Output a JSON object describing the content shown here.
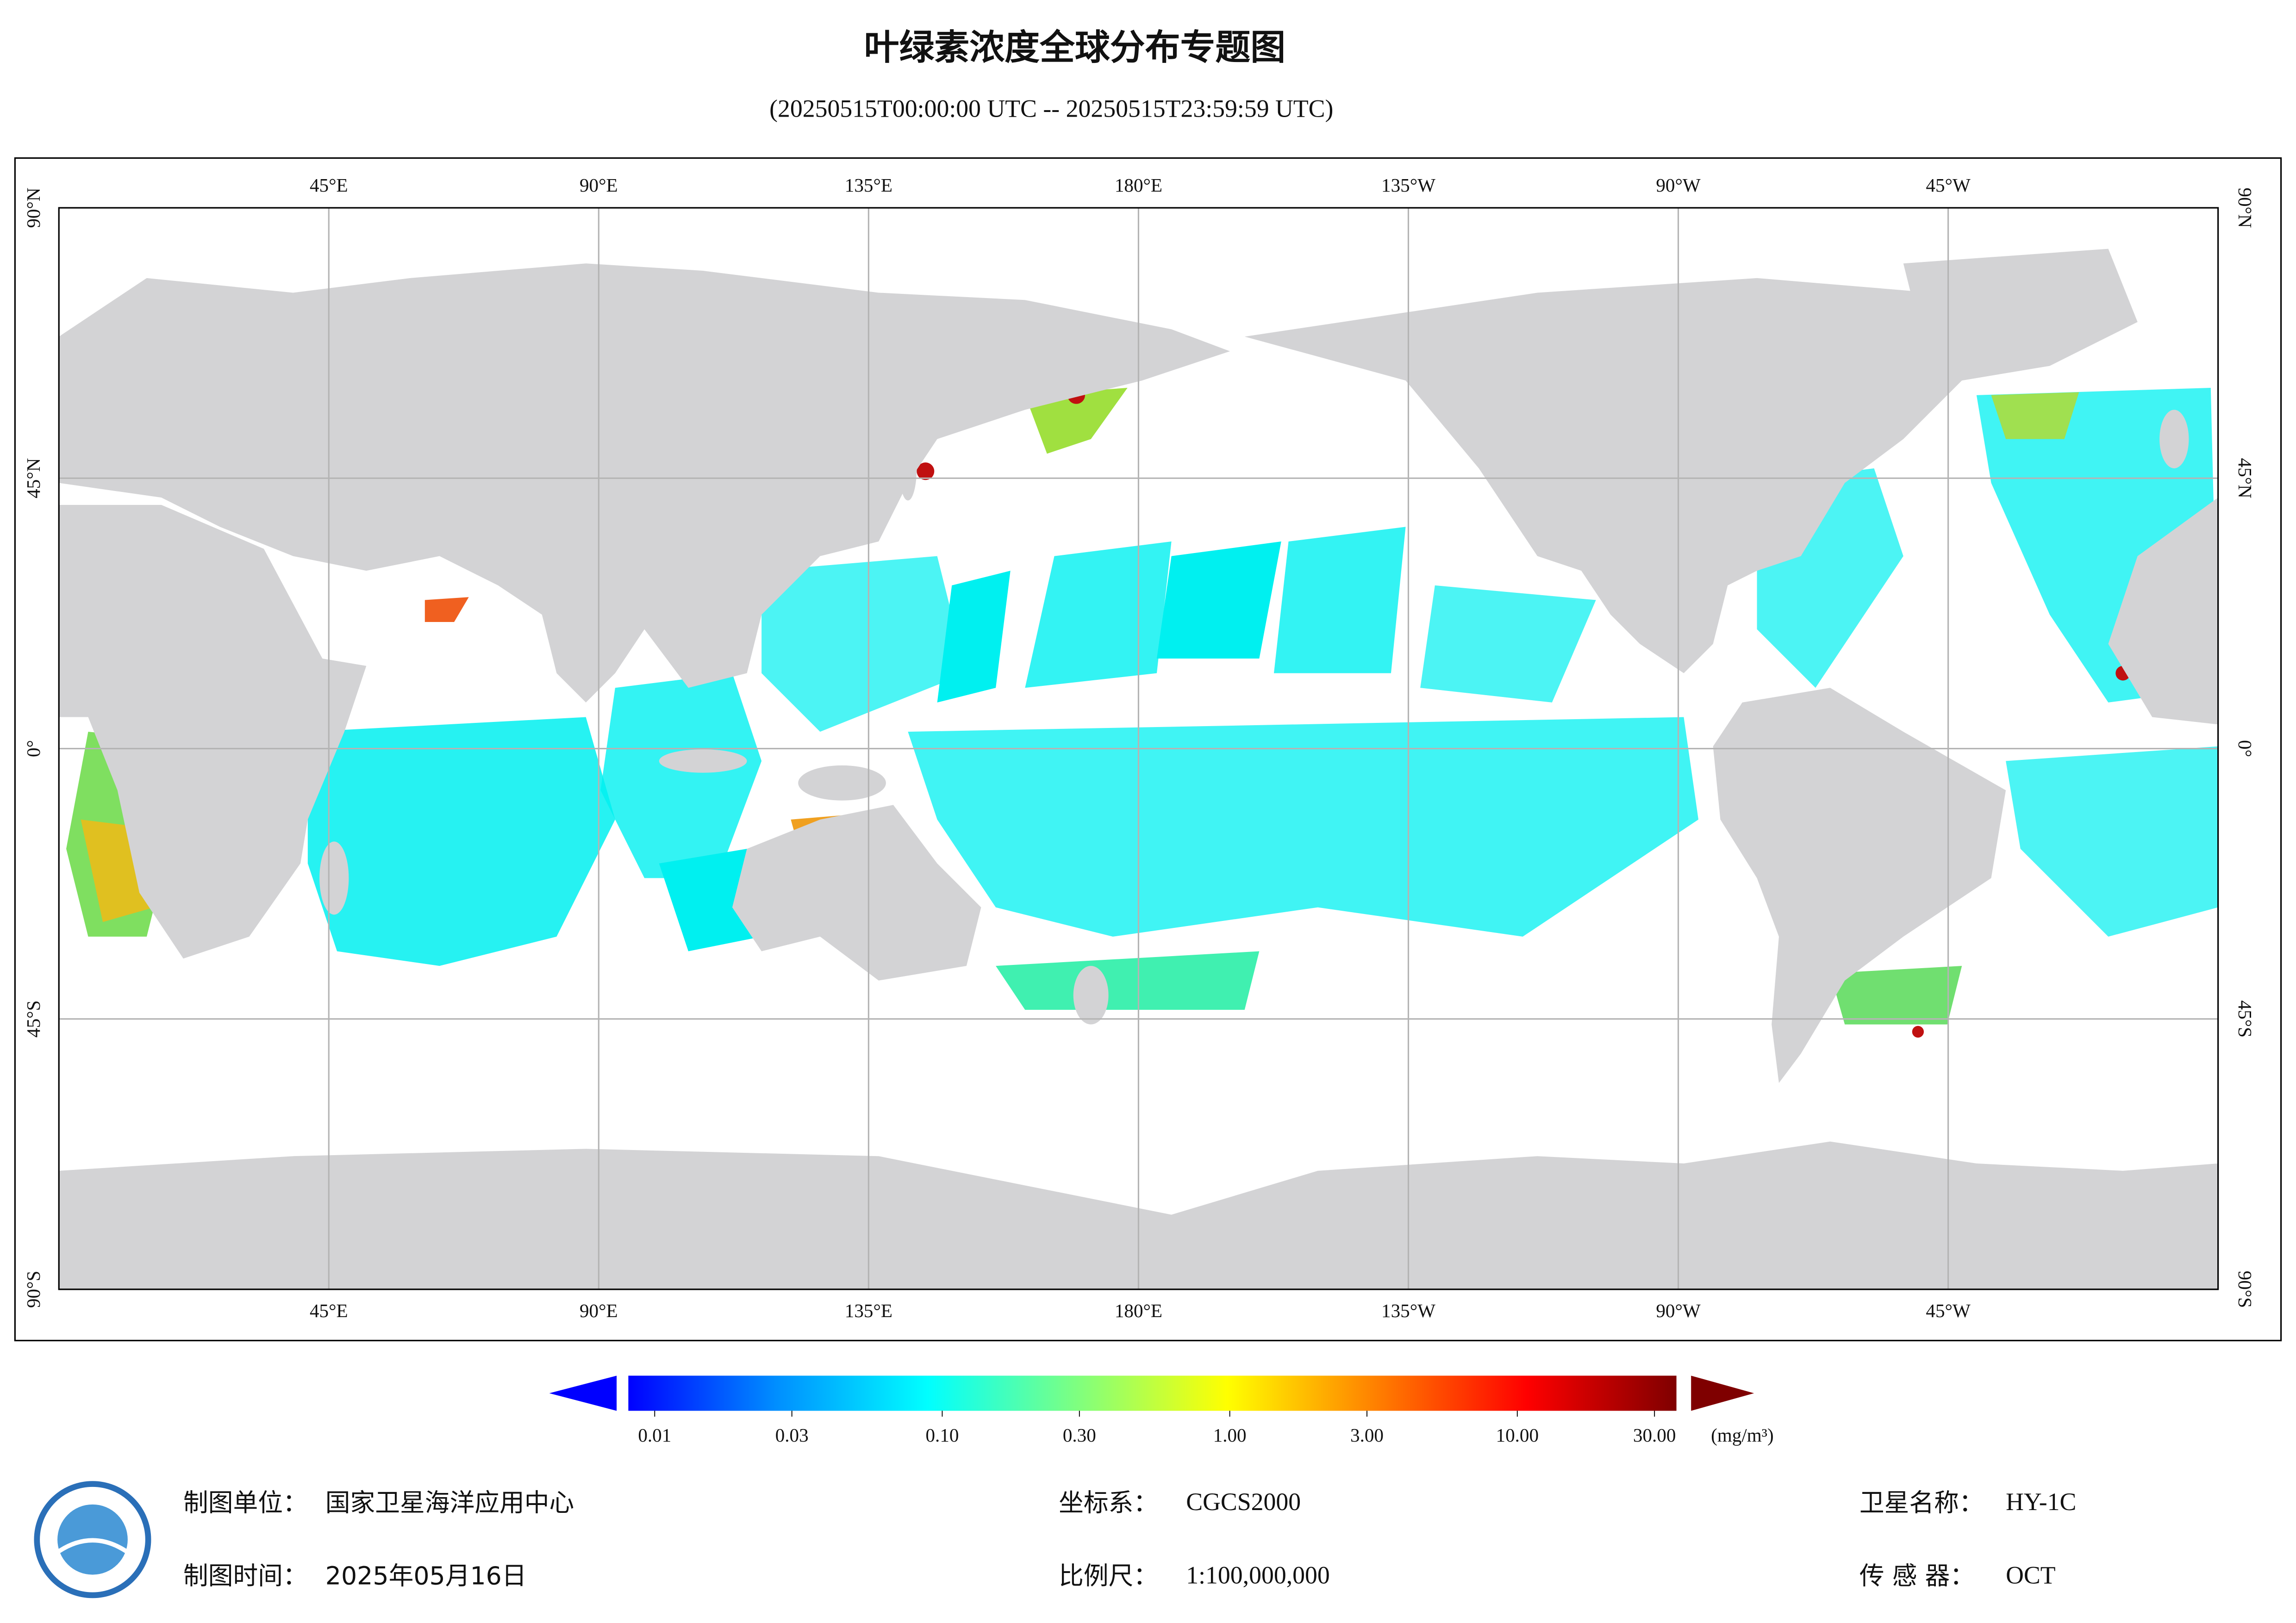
{
  "title": "叶绿素浓度全球分布专题图",
  "subtitle": "(20250515T00:00:00 UTC -- 20250515T23:59:59 UTC)",
  "map": {
    "lonlim": [
      0,
      360
    ],
    "latlim": [
      -90,
      90
    ],
    "grid": true,
    "land_color": "#d3d3d5",
    "lonticks": [
      {
        "value": 45,
        "label": "45°E"
      },
      {
        "value": 90,
        "label": "90°E"
      },
      {
        "value": 135,
        "label": "135°E"
      },
      {
        "value": 180,
        "label": "180°E"
      },
      {
        "value": 225,
        "label": "135°W"
      },
      {
        "value": 270,
        "label": "90°W"
      },
      {
        "value": 315,
        "label": "45°W"
      }
    ],
    "latticks": [
      {
        "value": 90,
        "label": "90°N"
      },
      {
        "value": 45,
        "label": "45°N"
      },
      {
        "value": 0,
        "label": "0°"
      },
      {
        "value": -45,
        "label": "45°S"
      },
      {
        "value": -90,
        "label": "90°S"
      }
    ]
  },
  "colorbar": {
    "scale": "log",
    "lim": [
      0.01,
      30
    ],
    "ticks": [
      0.01,
      0.03,
      {
        "value": 0.1,
        "label": "0.10"
      },
      {
        "value": 0.3,
        "label": "0.30"
      },
      {
        "value": 1,
        "label": "1.00"
      },
      {
        "value": 3,
        "label": "3.00"
      },
      {
        "value": 10,
        "label": "10.00"
      },
      {
        "value": 30,
        "label": "30.00"
      }
    ],
    "unit": "(mg/m³)",
    "colors": [
      "#0000ff",
      "#0090ff",
      "#00ffff",
      "#7fff7f",
      "#ffff00",
      "#ff7f00",
      "#ff0000",
      "#7f0000"
    ]
  },
  "footer": {
    "organization": {
      "label": "制图单位：",
      "value": "国家卫星海洋应用中心"
    },
    "date": {
      "label": "制图时间：",
      "value": "2025年05月16日"
    },
    "crs": {
      "label": "坐标系：",
      "value": "CGCS2000"
    },
    "scale": {
      "label": "比例尺：",
      "value": "1:100,000,000"
    },
    "satellite": {
      "label": "卫星名称：",
      "value": "HY-1C"
    },
    "sensor": {
      "label": "传 感 器：",
      "value": "OCT"
    }
  }
}
